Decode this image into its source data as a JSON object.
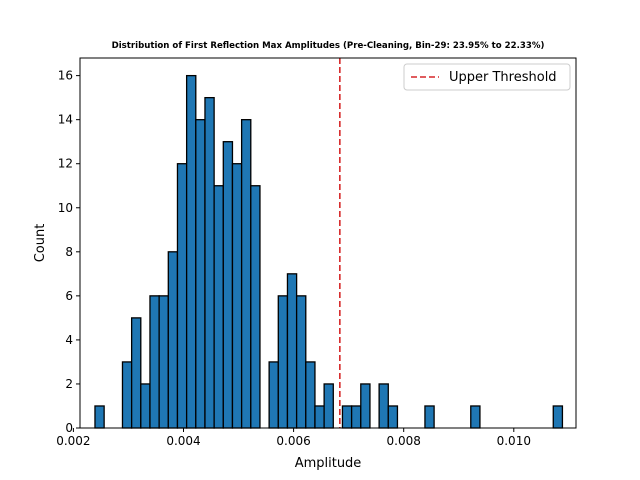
{
  "chart_data": {
    "type": "bar",
    "title": "Distribution of First Reflection Max Amplitudes (Pre-Cleaning, Bin-29: 23.95% to 22.33%)",
    "xlabel": "Amplitude",
    "ylabel": "Count",
    "xlim": [
      0.00212,
      0.01113
    ],
    "ylim": [
      0,
      16.8
    ],
    "x_ticks": [
      0.002,
      0.004,
      0.006,
      0.008,
      0.01
    ],
    "x_tick_labels": [
      "0.002",
      "0.004",
      "0.006",
      "0.008",
      "0.010"
    ],
    "y_ticks": [
      0,
      2,
      4,
      6,
      8,
      10,
      12,
      14,
      16
    ],
    "y_tick_labels": [
      "0",
      "2",
      "4",
      "6",
      "8",
      "10",
      "12",
      "14",
      "16"
    ],
    "bin_start": 0.002392,
    "bin_width": 0.0001665,
    "counts": [
      1,
      0,
      0,
      3,
      5,
      2,
      6,
      6,
      8,
      12,
      16,
      14,
      15,
      11,
      13,
      12,
      14,
      11,
      0,
      3,
      6,
      7,
      6,
      3,
      1,
      2,
      0,
      1,
      1,
      2,
      0,
      2,
      1,
      0,
      0,
      0,
      1,
      0,
      0,
      0,
      0,
      1,
      0,
      0,
      0,
      0,
      0,
      0,
      0,
      0,
      1
    ],
    "bar_color": "#1f77b4",
    "edge_color": "#000000",
    "threshold": {
      "label": "Upper Threshold",
      "x": 0.00684,
      "color": "#d62728",
      "style": "dashed"
    },
    "legend_position": "top-right",
    "grid": false
  }
}
